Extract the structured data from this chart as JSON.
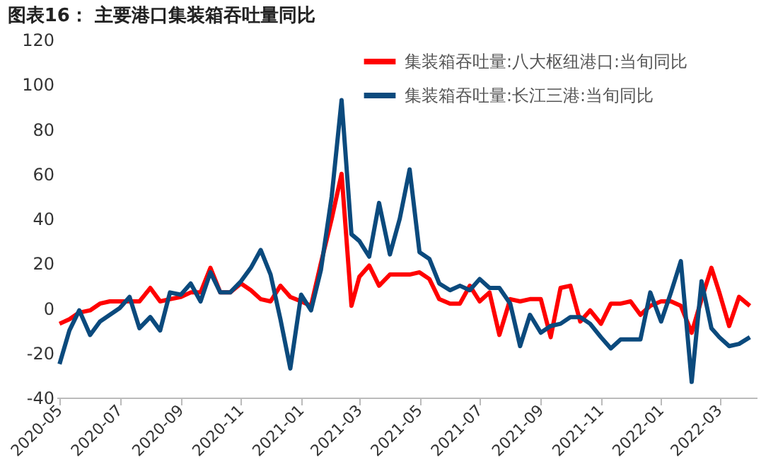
{
  "chart_data": {
    "type": "line",
    "title": "图表16： 主要港口集装箱吞吐量同比",
    "x": [
      "2020-05-01",
      "2020-05-11",
      "2020-05-21",
      "2020-06-01",
      "2020-06-11",
      "2020-06-21",
      "2020-07-01",
      "2020-07-11",
      "2020-07-21",
      "2020-08-01",
      "2020-08-11",
      "2020-08-21",
      "2020-09-01",
      "2020-09-11",
      "2020-09-21",
      "2020-10-01",
      "2020-10-11",
      "2020-10-21",
      "2020-11-01",
      "2020-11-11",
      "2020-11-21",
      "2020-12-01",
      "2020-12-11",
      "2020-12-21",
      "2021-01-01",
      "2021-01-11",
      "2021-01-21",
      "2021-02-01",
      "2021-02-11",
      "2021-02-21",
      "2021-03-01",
      "2021-03-11",
      "2021-03-21",
      "2021-04-01",
      "2021-04-11",
      "2021-04-21",
      "2021-05-01",
      "2021-05-11",
      "2021-05-21",
      "2021-06-01",
      "2021-06-11",
      "2021-06-21",
      "2021-07-01",
      "2021-07-11",
      "2021-07-21",
      "2021-08-01",
      "2021-08-11",
      "2021-08-21",
      "2021-09-01",
      "2021-09-11",
      "2021-09-21",
      "2021-10-01",
      "2021-10-11",
      "2021-10-21",
      "2021-11-01",
      "2021-11-11",
      "2021-11-21",
      "2021-12-01",
      "2021-12-11",
      "2021-12-21",
      "2022-01-01",
      "2022-01-11",
      "2022-01-21",
      "2022-02-01",
      "2022-02-11",
      "2022-02-21",
      "2022-03-01",
      "2022-03-11",
      "2022-03-21",
      "2022-04-01"
    ],
    "series": [
      {
        "name": "集装箱吞吐量:八大枢纽港口:当旬同比",
        "color": "#ff0000",
        "values": [
          -7,
          -5,
          -2,
          -1,
          2,
          3,
          3,
          3,
          3,
          9,
          3,
          4,
          5,
          7,
          7,
          18,
          7,
          7,
          11,
          8,
          4,
          3,
          10,
          5,
          3,
          1,
          20,
          40,
          60,
          1,
          14,
          19,
          10,
          15,
          15,
          15,
          16,
          13,
          4,
          2,
          2,
          10,
          3,
          7,
          -12,
          4,
          3,
          4,
          4,
          -13,
          9,
          10,
          -6,
          -1,
          -7,
          2,
          2,
          3,
          -3,
          1,
          3,
          3,
          1,
          -11,
          4,
          18,
          7,
          -8,
          5,
          1
        ]
      },
      {
        "name": "集装箱吞吐量:长江三港:当旬同比",
        "color": "#0b4a7d",
        "values": [
          -25,
          -10,
          -1,
          -12,
          -6,
          -3,
          0,
          5,
          -9,
          -4,
          -10,
          7,
          6,
          11,
          3,
          16,
          7,
          7,
          12,
          18,
          26,
          15,
          -5,
          -27,
          6,
          -1,
          17,
          50,
          93,
          33,
          30,
          23,
          47,
          24,
          40,
          62,
          25,
          22,
          11,
          8,
          10,
          8,
          13,
          9,
          9,
          2,
          -17,
          -3,
          -11,
          -8,
          -7,
          -4,
          -4,
          -7,
          -13,
          -18,
          -14,
          -14,
          -14,
          7,
          -6,
          7,
          21,
          -33,
          12,
          -9,
          -13,
          -17,
          -16,
          -13
        ]
      }
    ],
    "xlim": [
      "2020-04-28",
      "2022-04-08"
    ],
    "xticks": [
      {
        "value": "2020-05-01",
        "label": "2020-05"
      },
      {
        "value": "2020-07-01",
        "label": "2020-07"
      },
      {
        "value": "2020-09-01",
        "label": "2020-09"
      },
      {
        "value": "2020-11-01",
        "label": "2020-11"
      },
      {
        "value": "2021-01-01",
        "label": "2021-01"
      },
      {
        "value": "2021-03-01",
        "label": "2021-03"
      },
      {
        "value": "2021-05-01",
        "label": "2021-05"
      },
      {
        "value": "2021-07-01",
        "label": "2021-07"
      },
      {
        "value": "2021-09-01",
        "label": "2021-09"
      },
      {
        "value": "2021-11-01",
        "label": "2021-11"
      },
      {
        "value": "2022-01-01",
        "label": "2022-01"
      },
      {
        "value": "2022-03-01",
        "label": "2022-03"
      }
    ],
    "ylim": [
      -40,
      120
    ],
    "yticks": [
      -40,
      -20,
      0,
      20,
      40,
      60,
      80,
      100,
      120
    ],
    "grid": false,
    "legend": "top",
    "line_style": "solid",
    "marker": "none"
  }
}
